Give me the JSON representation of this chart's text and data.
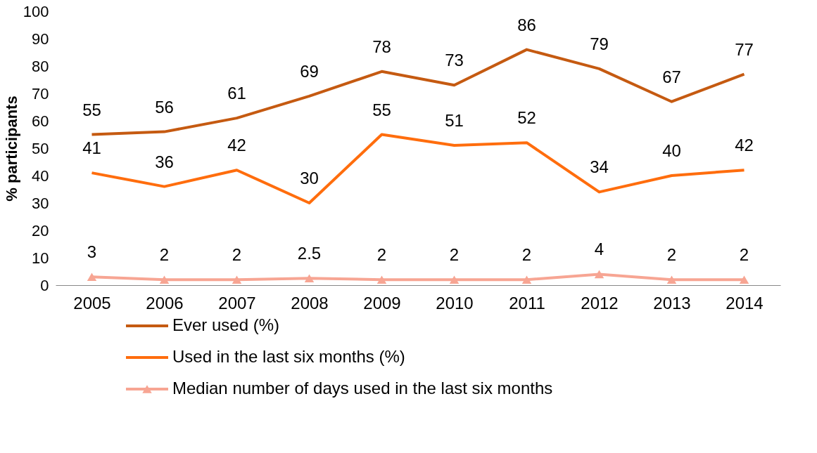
{
  "chart_data": {
    "type": "line",
    "ylabel": "% participants",
    "categories": [
      "2005",
      "2006",
      "2007",
      "2008",
      "2009",
      "2010",
      "2011",
      "2012",
      "2013",
      "2014"
    ],
    "series": [
      {
        "name": "Ever used (%)",
        "color": "#c55a11",
        "marker": "none",
        "values": [
          55,
          56,
          61,
          69,
          78,
          73,
          86,
          79,
          67,
          77
        ]
      },
      {
        "name": "Used in the last six months (%)",
        "color": "#ff6d0d",
        "marker": "none",
        "values": [
          41,
          36,
          42,
          30,
          55,
          51,
          52,
          34,
          40,
          42
        ]
      },
      {
        "name": "Median number of days used in the last six months",
        "color": "#f7a593",
        "marker": "triangle",
        "values": [
          3,
          2,
          2,
          2.5,
          2,
          2,
          2,
          4,
          2,
          2
        ]
      }
    ],
    "ylim": [
      0,
      100
    ],
    "yticks": [
      0,
      10,
      20,
      30,
      40,
      50,
      60,
      70,
      80,
      90,
      100
    ],
    "grid": false,
    "legend": "bottom",
    "data_labels": true,
    "line_style": "solid"
  }
}
